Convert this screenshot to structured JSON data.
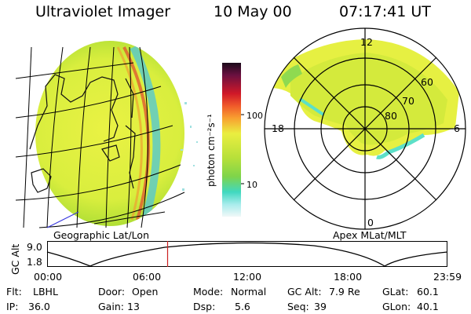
{
  "header": {
    "instrument": "Ultraviolet Imager",
    "date": "10 May 00",
    "time": "07:17:41 UT"
  },
  "panels": {
    "geo_label": "Geographic Lat/Lon",
    "apex_label": "Apex MLat/MLT"
  },
  "colorbar": {
    "unit_label": "photon cm⁻²s⁻¹",
    "ticks": [
      "100",
      "10"
    ]
  },
  "polar": {
    "mlt_labels": [
      "12",
      "18",
      "6",
      "0"
    ],
    "lat_labels": [
      "60",
      "70",
      "80"
    ]
  },
  "timeline": {
    "axis_label": "GC Alt",
    "ymax": "9.0",
    "ymin": "1.8",
    "xticks": [
      "00:00",
      "06:00",
      "12:00",
      "18:00",
      "23:59"
    ],
    "marker_time_fraction": 0.301
  },
  "params": {
    "row1": [
      {
        "key": "Flt:",
        "value": "LBHL"
      },
      {
        "key": "Door:",
        "value": "Open"
      },
      {
        "key": "Mode:",
        "value": "Normal"
      },
      {
        "key": "GC Alt:",
        "value": "7.9 Re"
      },
      {
        "key": "GLat:",
        "value": "60.1"
      }
    ],
    "row2": [
      {
        "key": "IP:",
        "value": "36.0"
      },
      {
        "key": "Gain:",
        "value": "13"
      },
      {
        "key": "Dsp:",
        "value": "5.6"
      },
      {
        "key": "Seq:",
        "value": "39"
      },
      {
        "key": "GLon:",
        "value": "40.1"
      }
    ]
  },
  "colors": {
    "marker": "#cc2222",
    "aurora_yellow": "#e8f040",
    "aurora_green": "#9ad630",
    "aurora_cyan": "#5ce0c8"
  }
}
